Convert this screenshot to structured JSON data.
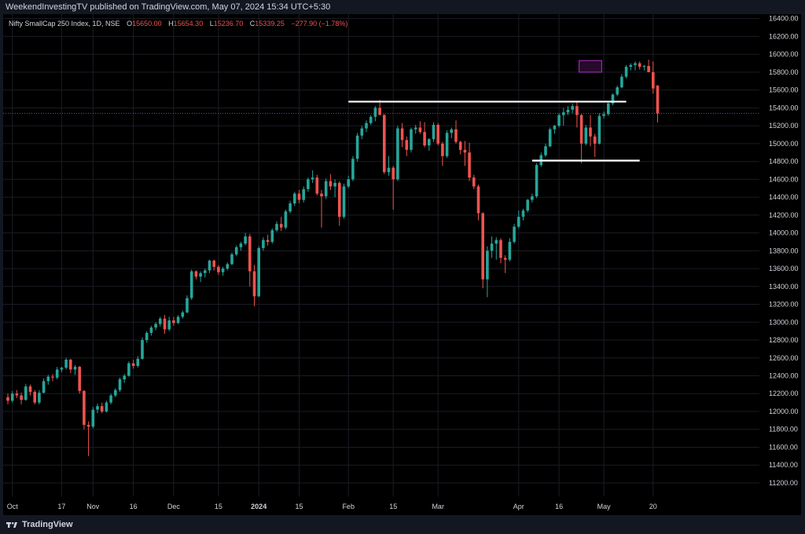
{
  "header": {
    "publisher_line": "WeekendInvestingTV published on TradingView.com, May 07, 2024 15:34 UTC+5:30"
  },
  "legend": {
    "symbol": "Nifty SmallCap 250 Index, 1D, NSE",
    "o_label": "O",
    "o_value": "15650.00",
    "h_label": "H",
    "h_value": "15654.30",
    "l_label": "L",
    "l_value": "15236.70",
    "c_label": "C",
    "c_value": "15339.25",
    "change": "−277.90 (−1.78%)"
  },
  "footer": {
    "brand": "TradingView",
    "brand_icon": "tradingview-logo-icon"
  },
  "colors": {
    "up": "#26a69a",
    "down": "#ef5350",
    "background": "#000000",
    "frame": "#131722",
    "grid": "#1a1d26",
    "text": "#d1d4dc",
    "highlight": "#9c27b0"
  },
  "chart_data": {
    "type": "candlestick",
    "title": "",
    "ylim": [
      11050,
      16450
    ],
    "y_ticks": [
      "16400.00",
      "16200.00",
      "16000.00",
      "15800.00",
      "15600.00",
      "15400.00",
      "15200.00",
      "15000.00",
      "14800.00",
      "14600.00",
      "14400.00",
      "14200.00",
      "14000.00",
      "13800.00",
      "13600.00",
      "13400.00",
      "13200.00",
      "13000.00",
      "12800.00",
      "12600.00",
      "12400.00",
      "12200.00",
      "12000.00",
      "11800.00",
      "11600.00",
      "11400.00",
      "11200.00"
    ],
    "x_labels": [
      {
        "index": 1,
        "label": "Oct"
      },
      {
        "index": 12,
        "label": "17"
      },
      {
        "index": 19,
        "label": "Nov"
      },
      {
        "index": 28,
        "label": "16"
      },
      {
        "index": 37,
        "label": "Dec"
      },
      {
        "index": 47,
        "label": "15"
      },
      {
        "index": 56,
        "label": "2024"
      },
      {
        "index": 65,
        "label": "15"
      },
      {
        "index": 76,
        "label": "Feb"
      },
      {
        "index": 86,
        "label": "15"
      },
      {
        "index": 96,
        "label": "Mar"
      },
      {
        "index": 114,
        "label": "Apr"
      },
      {
        "index": 123,
        "label": "16"
      },
      {
        "index": 133,
        "label": "May"
      },
      {
        "index": 144,
        "label": "20"
      }
    ],
    "last_price_line": 15339.25,
    "candles": [
      [
        12160,
        12200,
        12080,
        12120
      ],
      [
        12120,
        12230,
        12100,
        12200
      ],
      [
        12200,
        12240,
        12150,
        12180
      ],
      [
        12180,
        12210,
        12080,
        12130
      ],
      [
        12130,
        12310,
        12120,
        12280
      ],
      [
        12280,
        12300,
        12180,
        12220
      ],
      [
        12220,
        12240,
        12080,
        12100
      ],
      [
        12100,
        12240,
        12080,
        12210
      ],
      [
        12210,
        12370,
        12200,
        12340
      ],
      [
        12340,
        12410,
        12300,
        12390
      ],
      [
        12390,
        12420,
        12340,
        12380
      ],
      [
        12380,
        12500,
        12360,
        12470
      ],
      [
        12470,
        12500,
        12440,
        12490
      ],
      [
        12490,
        12600,
        12470,
        12580
      ],
      [
        12580,
        12590,
        12430,
        12470
      ],
      [
        12470,
        12520,
        12410,
        12500
      ],
      [
        12500,
        12510,
        12200,
        12230
      ],
      [
        12230,
        12240,
        11800,
        11850
      ],
      [
        11850,
        11890,
        11500,
        11830
      ],
      [
        11830,
        12050,
        11810,
        12020
      ],
      [
        12020,
        12090,
        11980,
        12060
      ],
      [
        12060,
        12100,
        11980,
        12000
      ],
      [
        12000,
        12120,
        11990,
        12100
      ],
      [
        12100,
        12200,
        12080,
        12180
      ],
      [
        12180,
        12260,
        12160,
        12240
      ],
      [
        12240,
        12380,
        12220,
        12360
      ],
      [
        12360,
        12420,
        12320,
        12400
      ],
      [
        12400,
        12560,
        12390,
        12540
      ],
      [
        12540,
        12580,
        12480,
        12510
      ],
      [
        12510,
        12620,
        12490,
        12590
      ],
      [
        12590,
        12830,
        12580,
        12800
      ],
      [
        12800,
        12900,
        12770,
        12880
      ],
      [
        12880,
        12960,
        12850,
        12940
      ],
      [
        12940,
        13000,
        12910,
        12980
      ],
      [
        12980,
        13060,
        12950,
        13040
      ],
      [
        13040,
        13080,
        12870,
        12920
      ],
      [
        12920,
        13060,
        12900,
        13020
      ],
      [
        13020,
        13060,
        12960,
        12990
      ],
      [
        12990,
        13080,
        12980,
        13060
      ],
      [
        13060,
        13130,
        13040,
        13110
      ],
      [
        13110,
        13300,
        13100,
        13270
      ],
      [
        13270,
        13590,
        13250,
        13570
      ],
      [
        13570,
        13580,
        13480,
        13510
      ],
      [
        13510,
        13570,
        13450,
        13550
      ],
      [
        13550,
        13600,
        13500,
        13580
      ],
      [
        13580,
        13700,
        13550,
        13690
      ],
      [
        13690,
        13700,
        13580,
        13620
      ],
      [
        13620,
        13640,
        13530,
        13560
      ],
      [
        13560,
        13620,
        13520,
        13600
      ],
      [
        13600,
        13670,
        13580,
        13650
      ],
      [
        13650,
        13780,
        13640,
        13760
      ],
      [
        13760,
        13860,
        13740,
        13840
      ],
      [
        13840,
        13900,
        13800,
        13880
      ],
      [
        13880,
        14000,
        13860,
        13960
      ],
      [
        13960,
        13990,
        13400,
        13570
      ],
      [
        13570,
        13640,
        13180,
        13290
      ],
      [
        13290,
        13850,
        13280,
        13830
      ],
      [
        13830,
        13950,
        13800,
        13920
      ],
      [
        13920,
        13980,
        13860,
        13900
      ],
      [
        13900,
        14050,
        13880,
        14030
      ],
      [
        14030,
        14130,
        14010,
        14100
      ],
      [
        14100,
        14180,
        14020,
        14060
      ],
      [
        14060,
        14260,
        14040,
        14240
      ],
      [
        14240,
        14360,
        14220,
        14330
      ],
      [
        14330,
        14460,
        14300,
        14440
      ],
      [
        14440,
        14480,
        14330,
        14370
      ],
      [
        14370,
        14520,
        14340,
        14490
      ],
      [
        14490,
        14620,
        14460,
        14600
      ],
      [
        14600,
        14700,
        14560,
        14620
      ],
      [
        14620,
        14650,
        14420,
        14440
      ],
      [
        14440,
        14480,
        14060,
        14410
      ],
      [
        14410,
        14610,
        14380,
        14580
      ],
      [
        14580,
        14660,
        14480,
        14520
      ],
      [
        14520,
        14600,
        14400,
        14560
      ],
      [
        14560,
        14580,
        14080,
        14180
      ],
      [
        14180,
        14550,
        14160,
        14520
      ],
      [
        14520,
        14640,
        14500,
        14600
      ],
      [
        14600,
        14860,
        14580,
        14830
      ],
      [
        14830,
        15120,
        14800,
        15090
      ],
      [
        15090,
        15200,
        15050,
        15170
      ],
      [
        15170,
        15260,
        15130,
        15230
      ],
      [
        15230,
        15320,
        15210,
        15300
      ],
      [
        15300,
        15420,
        15250,
        15400
      ],
      [
        15400,
        15490,
        15360,
        15320
      ],
      [
        15320,
        15330,
        14660,
        14680
      ],
      [
        14680,
        14860,
        14640,
        14730
      ],
      [
        14730,
        14750,
        14260,
        14600
      ],
      [
        14600,
        15200,
        14580,
        15170
      ],
      [
        15170,
        15230,
        14960,
        15040
      ],
      [
        15040,
        15080,
        14860,
        14930
      ],
      [
        14930,
        15180,
        14900,
        15160
      ],
      [
        15160,
        15210,
        15110,
        15180
      ],
      [
        15180,
        15250,
        15110,
        15130
      ],
      [
        15130,
        15240,
        14960,
        14980
      ],
      [
        14980,
        15060,
        14920,
        15050
      ],
      [
        15050,
        15240,
        15020,
        15210
      ],
      [
        15210,
        15230,
        14980,
        15000
      ],
      [
        15000,
        15020,
        14750,
        14860
      ],
      [
        14860,
        15150,
        14840,
        15120
      ],
      [
        15120,
        15180,
        15060,
        15160
      ],
      [
        15160,
        15260,
        15000,
        15020
      ],
      [
        15020,
        15030,
        14880,
        14930
      ],
      [
        14930,
        15030,
        14750,
        14900
      ],
      [
        14900,
        15010,
        14580,
        14620
      ],
      [
        14620,
        14650,
        14490,
        14520
      ],
      [
        14520,
        14540,
        14140,
        14220
      ],
      [
        14220,
        14230,
        13380,
        13480
      ],
      [
        13480,
        13850,
        13280,
        13800
      ],
      [
        13800,
        13960,
        13720,
        13880
      ],
      [
        13880,
        13950,
        13700,
        13920
      ],
      [
        13920,
        13940,
        13660,
        13720
      ],
      [
        13720,
        13750,
        13550,
        13700
      ],
      [
        13700,
        13940,
        13680,
        13900
      ],
      [
        13900,
        14100,
        13880,
        14070
      ],
      [
        14070,
        14250,
        14050,
        14180
      ],
      [
        14180,
        14270,
        14140,
        14250
      ],
      [
        14250,
        14380,
        14230,
        14370
      ],
      [
        14370,
        14440,
        14340,
        14410
      ],
      [
        14410,
        14780,
        14390,
        14760
      ],
      [
        14760,
        14900,
        14740,
        14870
      ],
      [
        14870,
        15000,
        14850,
        14970
      ],
      [
        14970,
        15180,
        14960,
        15160
      ],
      [
        15160,
        15210,
        15110,
        15200
      ],
      [
        15200,
        15340,
        15180,
        15320
      ],
      [
        15320,
        15400,
        15200,
        15350
      ],
      [
        15350,
        15420,
        15320,
        15380
      ],
      [
        15380,
        15450,
        15340,
        15420
      ],
      [
        15420,
        15480,
        15180,
        15320
      ],
      [
        15320,
        15330,
        14780,
        15000
      ],
      [
        15000,
        15210,
        14980,
        15180
      ],
      [
        15180,
        15320,
        14970,
        15080
      ],
      [
        15080,
        15110,
        14850,
        15000
      ],
      [
        15000,
        15340,
        14990,
        15310
      ],
      [
        15310,
        15360,
        15280,
        15330
      ],
      [
        15330,
        15460,
        15310,
        15450
      ],
      [
        15450,
        15560,
        15430,
        15550
      ],
      [
        15550,
        15650,
        15530,
        15630
      ],
      [
        15630,
        15780,
        15620,
        15750
      ],
      [
        15750,
        15880,
        15730,
        15860
      ],
      [
        15860,
        15900,
        15820,
        15880
      ],
      [
        15880,
        15920,
        15820,
        15900
      ],
      [
        15900,
        15920,
        15830,
        15860
      ],
      [
        15860,
        15880,
        15820,
        15870
      ],
      [
        15870,
        15940,
        15800,
        15800
      ],
      [
        15800,
        15920,
        15560,
        15617
      ],
      [
        15650,
        15654,
        15237,
        15339
      ]
    ],
    "annotations": [
      {
        "type": "hline",
        "y": 15470,
        "x_from_index": 76,
        "x_to_index": 138
      },
      {
        "type": "hline",
        "y": 14810,
        "x_from_index": 117,
        "x_to_index": 141
      },
      {
        "type": "box",
        "y_from": 15800,
        "y_to": 15930,
        "x_from_index": 128,
        "x_to_index": 132
      }
    ]
  }
}
